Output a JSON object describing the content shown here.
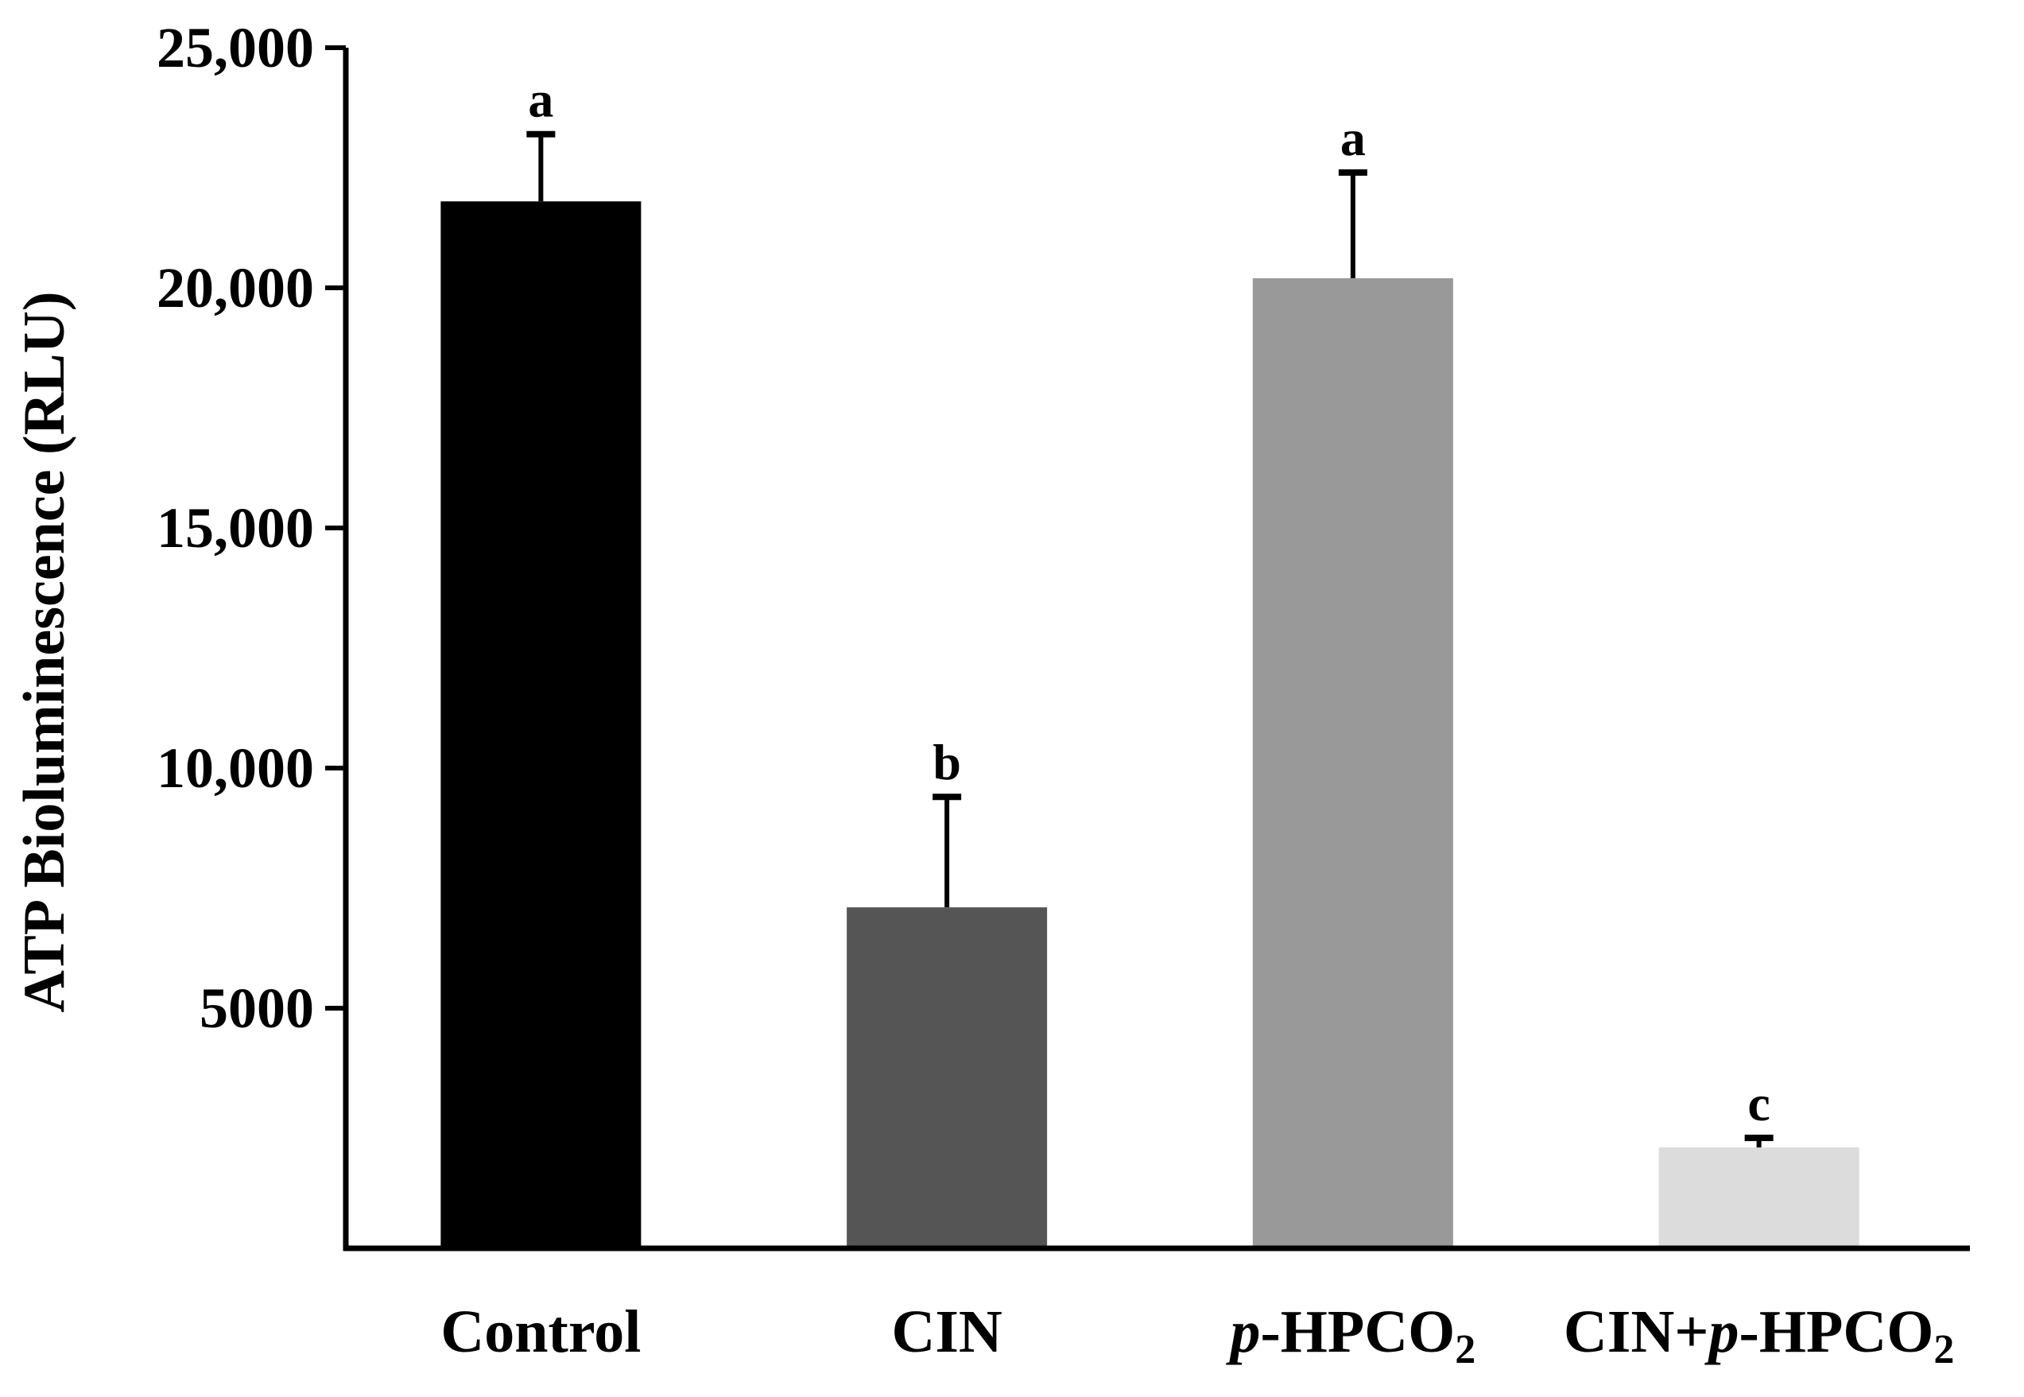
{
  "chart_data": {
    "type": "bar",
    "title": "",
    "xlabel": "",
    "ylabel": "ATP Bioluminescence (RLU)",
    "ylim": [
      0,
      25000
    ],
    "yticks": [
      5000,
      10000,
      15000,
      20000,
      25000
    ],
    "ytick_labels": [
      "5000",
      "10,000",
      "15,000",
      "20,000",
      "25,000"
    ],
    "categories": [
      {
        "prefix": "",
        "italic": "",
        "main": "Control",
        "sub": ""
      },
      {
        "prefix": "",
        "italic": "",
        "main": "CIN",
        "sub": ""
      },
      {
        "prefix": "",
        "italic": "p",
        "main": "-HPCO",
        "sub": "2"
      },
      {
        "prefix": "CIN+",
        "italic": "p",
        "main": "-HPCO",
        "sub": "2"
      }
    ],
    "values": [
      21800,
      7100,
      20200,
      2100
    ],
    "errors": [
      1400,
      2300,
      2200,
      200
    ],
    "significance": [
      "a",
      "b",
      "a",
      "c"
    ],
    "colors": [
      "#000000",
      "#555555",
      "#999999",
      "#dcdcdc"
    ],
    "grid": false,
    "legend": "none"
  }
}
